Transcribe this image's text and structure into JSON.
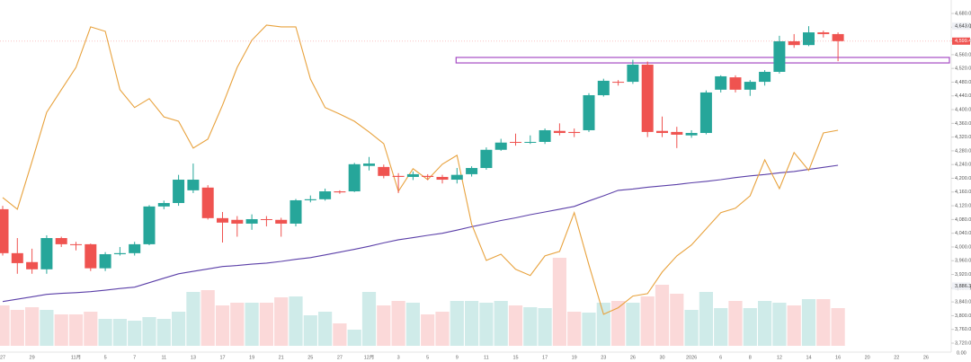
{
  "chart_data": {
    "type": "candlestick",
    "categories": [
      "27",
      null,
      "29",
      null,
      null,
      "11月",
      null,
      "5",
      null,
      "7",
      null,
      "11",
      null,
      "13",
      null,
      "17",
      null,
      "19",
      null,
      "21",
      null,
      "25",
      null,
      "27",
      null,
      "12月",
      null,
      "3",
      null,
      "5",
      null,
      "9",
      null,
      "11",
      null,
      "15",
      null,
      "17",
      null,
      "19",
      null,
      "23",
      null,
      "26",
      null,
      "30",
      null,
      "2026",
      null,
      "6",
      null,
      "8",
      null,
      "12",
      null,
      "14",
      null,
      "16",
      null,
      "20",
      null,
      "22",
      null,
      "26"
    ],
    "open": [
      4110,
      3982,
      3956,
      3935,
      4026,
      4008,
      4008,
      3938,
      3979,
      3982,
      4008,
      4118,
      4128,
      4165,
      4173,
      4084,
      4079,
      4068,
      4081,
      4079,
      4068,
      4136,
      4139,
      4162,
      4162,
      4236,
      4233,
      4207,
      4204,
      4207,
      4204,
      4196,
      4212,
      4230,
      4283,
      4306,
      4304,
      4306,
      4338,
      4335,
      4340,
      4442,
      4481,
      4481,
      4531,
      4338,
      4335,
      4325,
      4332,
      4458,
      4494,
      4458,
      4481,
      4510,
      4599,
      4588,
      4625,
      4620,
      null,
      null,
      null,
      null,
      null,
      null
    ],
    "high": [
      4120,
      4026,
      3995,
      4034,
      4030,
      4015,
      4010,
      3985,
      4000,
      4015,
      4122,
      4135,
      4210,
      4243,
      4180,
      4102,
      4090,
      4095,
      4090,
      4085,
      4140,
      4150,
      4170,
      4165,
      4245,
      4262,
      4240,
      4215,
      4220,
      4212,
      4210,
      4230,
      4235,
      4290,
      4315,
      4330,
      4325,
      4345,
      4360,
      4345,
      4448,
      4490,
      4486,
      4545,
      4540,
      4380,
      4350,
      4340,
      4456,
      4500,
      4500,
      4486,
      4515,
      4615,
      4620,
      4643.04,
      4630,
      4625,
      null,
      null,
      null,
      null,
      null,
      null
    ],
    "low": [
      3975,
      3922,
      3922,
      3922,
      4000,
      3990,
      3930,
      3930,
      3975,
      3975,
      4005,
      4110,
      4120,
      4157,
      4080,
      4013,
      4030,
      4050,
      4060,
      4030,
      4060,
      4130,
      4135,
      4155,
      4160,
      4223,
      4200,
      4157,
      4195,
      4195,
      4185,
      4185,
      4205,
      4225,
      4280,
      4295,
      4300,
      4300,
      4325,
      4320,
      4335,
      4438,
      4470,
      4475,
      4320,
      4320,
      4288,
      4318,
      4328,
      4450,
      4450,
      4440,
      4470,
      4505,
      4580,
      4585,
      4610,
      4541,
      null,
      null,
      null,
      null,
      null,
      null
    ],
    "close": [
      3982,
      3953,
      3935,
      4026,
      4008,
      4006,
      3938,
      3979,
      3982,
      4008,
      4118,
      4128,
      4196,
      4196,
      4084,
      4071,
      4068,
      4081,
      4079,
      4068,
      4136,
      4139,
      4162,
      4159,
      4241,
      4243,
      4207,
      4204,
      4212,
      4204,
      4196,
      4210,
      4230,
      4283,
      4304,
      4304,
      4306,
      4340,
      4332,
      4332,
      4442,
      4484,
      4479,
      4531,
      4335,
      4332,
      4327,
      4332,
      4450,
      4497,
      4458,
      4481,
      4510,
      4599,
      4588,
      4625,
      4620,
      4599.46,
      null,
      null,
      null,
      null,
      null,
      null
    ],
    "up_color": "#26a69a",
    "down_color": "#ef5350",
    "volume": [
      45,
      40,
      43,
      40,
      35,
      35,
      38,
      30,
      30,
      28,
      32,
      30,
      38,
      60,
      62,
      45,
      48,
      48,
      48,
      54,
      55,
      34,
      38,
      25,
      18,
      60,
      45,
      50,
      48,
      35,
      38,
      50,
      50,
      48,
      50,
      45,
      43,
      42,
      98,
      38,
      37,
      48,
      50,
      48,
      55,
      68,
      58,
      40,
      60,
      42,
      50,
      42,
      50,
      48,
      45,
      52,
      52,
      42,
      null,
      null,
      null,
      null,
      null,
      null
    ],
    "series": [
      {
        "color": "#5b3fa8",
        "values": [
          3841,
          3848,
          3855,
          3862,
          3865,
          3867,
          3870,
          3874,
          3879,
          3883,
          3896,
          3909,
          3922,
          3929,
          3936,
          3943,
          3946,
          3950,
          3953,
          3958,
          3964,
          3969,
          3977,
          3985,
          3993,
          4002,
          4012,
          4021,
          4027,
          4034,
          4040,
          4049,
          4059,
          4068,
          4077,
          4085,
          4094,
          4102,
          4110,
          4118,
          4134,
          4149,
          4165,
          4169,
          4174,
          4178,
          4182,
          4187,
          4191,
          4196,
          4202,
          4207,
          4211,
          4216,
          4220,
          4226,
          4232,
          4238,
          null,
          null,
          null,
          null,
          null,
          null
        ]
      },
      {
        "color": "#e8a23d",
        "values": [
          4144,
          4110,
          4249,
          4392,
          4458,
          4523,
          4641,
          4628,
          4458,
          4406,
          4432,
          4379,
          4366,
          4288,
          4314,
          4413,
          4523,
          4602,
          4646,
          4641,
          4641,
          4489,
          4406,
          4387,
          4366,
          4335,
          4301,
          4162,
          4228,
          4196,
          4241,
          4267,
          4066,
          3961,
          3979,
          3935,
          3917,
          3974,
          3987,
          4100,
          3948,
          3804,
          3823,
          3857,
          3864,
          3927,
          3974,
          4006,
          4053,
          4100,
          4113,
          4149,
          4254,
          4170,
          4275,
          4223,
          4332,
          4340,
          null,
          null,
          null,
          null,
          null,
          null
        ]
      }
    ],
    "zone": {
      "from": 4536,
      "to": 4552,
      "start": 31,
      "color": "#a64cc4"
    },
    "ylim": [
      3720,
      4680
    ],
    "yticks": [
      {
        "value": 3720,
        "label": "3,720.00"
      },
      {
        "value": 3760,
        "label": "3,760.00"
      },
      {
        "value": 3800,
        "label": "3,800.00"
      },
      {
        "value": 3840,
        "label": "3,840.00"
      },
      {
        "value": 3880,
        "label": "3,880.00"
      },
      {
        "value": 3920,
        "label": "3,920.00"
      },
      {
        "value": 3960,
        "label": "3,960.00"
      },
      {
        "value": 4000,
        "label": "4,000.00"
      },
      {
        "value": 4040,
        "label": "4,040.00"
      },
      {
        "value": 4080,
        "label": "4,080.00"
      },
      {
        "value": 4120,
        "label": "4,120.00"
      },
      {
        "value": 4160,
        "label": "4,160.00"
      },
      {
        "value": 4200,
        "label": "4,200.00"
      },
      {
        "value": 4240,
        "label": "4,240.00"
      },
      {
        "value": 4280,
        "label": "4,280.00"
      },
      {
        "value": 4320,
        "label": "4,320.00"
      },
      {
        "value": 4360,
        "label": "4,360.00"
      },
      {
        "value": 4400,
        "label": "4,400.00"
      },
      {
        "value": 4440,
        "label": "4,440.00"
      },
      {
        "value": 4480,
        "label": "4,480.00"
      },
      {
        "value": 4520,
        "label": "4,520.00"
      },
      {
        "value": 4560,
        "label": "4,560.00"
      },
      {
        "value": 4600,
        "label": "4,600.00"
      },
      {
        "value": 4640,
        "label": "4,640.00"
      },
      {
        "value": 4680,
        "label": "4,680.00"
      }
    ],
    "markers": [
      {
        "value": 4643.04,
        "label": "4,643.04"
      },
      {
        "value": 3886.38,
        "label": "3,886.38"
      }
    ],
    "last_price": {
      "value": 4599.46,
      "label": "4,599.46"
    },
    "volume_axis_label": "0.00"
  }
}
